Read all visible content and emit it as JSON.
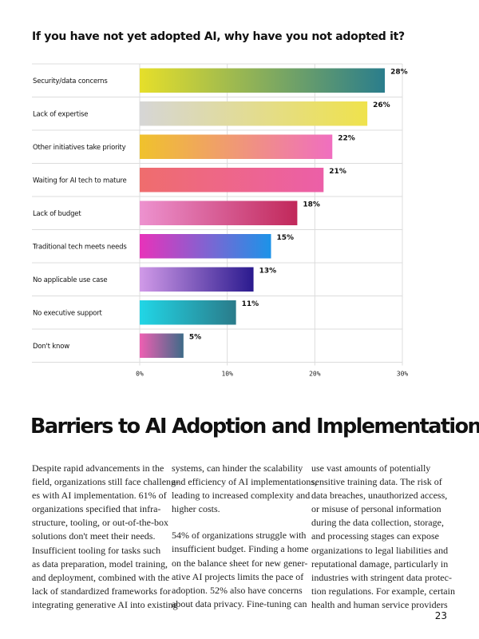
{
  "chart_data": {
    "type": "bar",
    "orientation": "horizontal",
    "title": "If you have not yet adopted AI, why have you not adopted it?",
    "categories": [
      "Security/data concerns",
      "Lack of expertise",
      "Other initiatives take priority",
      "Waiting for AI tech to mature",
      "Lack of budget",
      "Traditional tech meets needs",
      "No applicable use case",
      "No executive support",
      "Don't know"
    ],
    "values": [
      28,
      26,
      22,
      21,
      18,
      15,
      13,
      11,
      5
    ],
    "value_labels": [
      "28%",
      "26%",
      "22%",
      "21%",
      "18%",
      "15%",
      "13%",
      "11%",
      "5%"
    ],
    "xlim": [
      0,
      30
    ],
    "xticks": [
      0,
      10,
      20,
      30
    ],
    "xtick_labels": [
      "0%",
      "10%",
      "20%",
      "30%"
    ],
    "gridlines": true,
    "bar_gradients": [
      [
        "#e6df2a",
        "#2a7d8c"
      ],
      [
        "#d6d6d6",
        "#efe24c"
      ],
      [
        "#f0c22c",
        "#f06ec0"
      ],
      [
        "#ef6d6d",
        "#ec5fa8"
      ],
      [
        "#ed92cf",
        "#c1285a"
      ],
      [
        "#e832ba",
        "#1c93e8"
      ],
      [
        "#d19ae8",
        "#2a1a8e"
      ],
      [
        "#21d6e6",
        "#2a7b8a"
      ],
      [
        "#ee5fb2",
        "#3e6b88"
      ]
    ]
  },
  "section": {
    "heading": "Barriers to AI Adoption and Implementation"
  },
  "body_columns": [
    {
      "paragraphs": [
        [
          "Despite rapid advancements in the",
          "field, organizations still face challeng-",
          "es with AI implementation. 61% of",
          "organizations specified that infra-",
          "structure, tooling, or out-of-the-box",
          "solutions don't meet their needs.",
          "Insufficient tooling for tasks such",
          "as data preparation, model training,",
          "and deployment, combined with the",
          "lack of standardized frameworks for",
          "integrating generative AI into existing"
        ]
      ]
    },
    {
      "paragraphs": [
        [
          "systems, can hinder the scalability",
          "and efficiency of AI implementations,",
          "leading to increased complexity and",
          "higher costs."
        ],
        [
          "54% of organizations struggle with",
          "insufficient budget. Finding a home",
          "on the balance sheet for new gener-",
          "ative AI projects limits the pace of",
          "adoption. 52% also have concerns",
          "about data privacy. Fine-tuning can"
        ]
      ]
    },
    {
      "paragraphs": [
        [
          "use vast amounts of potentially",
          "sensitive training data. The risk of",
          "data breaches, unauthorized access,",
          "or misuse of personal information",
          "during the data collection, storage,",
          "and processing stages can expose",
          "organizations to legal liabilities and",
          "reputational damage, particularly in",
          "industries with stringent data protec-",
          "tion regulations. For example, certain",
          "health and human service providers"
        ]
      ]
    }
  ],
  "page_number": "23"
}
